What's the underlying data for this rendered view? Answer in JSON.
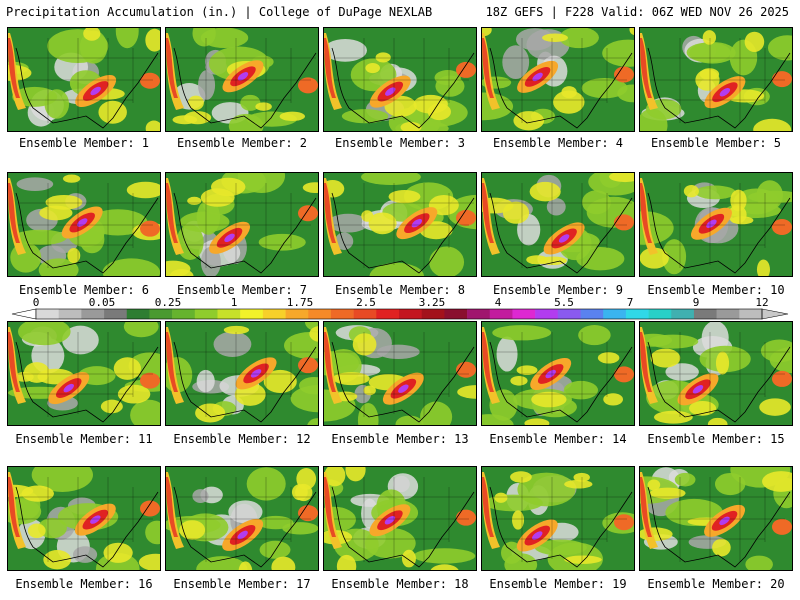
{
  "header": {
    "title": "Precipitation Accumulation (in.) | College of DuPage NEXLAB",
    "valid": "18Z GEFS | F228 Valid: 06Z WED NOV 26 2025"
  },
  "members": [
    "Ensemble Member: 1",
    "Ensemble Member: 2",
    "Ensemble Member: 3",
    "Ensemble Member: 4",
    "Ensemble Member: 5",
    "Ensemble Member: 6",
    "Ensemble Member: 7",
    "Ensemble Member: 8",
    "Ensemble Member: 9",
    "Ensemble Member: 10",
    "Ensemble Member: 11",
    "Ensemble Member: 12",
    "Ensemble Member: 13",
    "Ensemble Member: 14",
    "Ensemble Member: 15",
    "Ensemble Member: 16",
    "Ensemble Member: 17",
    "Ensemble Member: 18",
    "Ensemble Member: 19",
    "Ensemble Member: 20"
  ],
  "legend": {
    "labels": [
      "0",
      "0.05",
      "0.25",
      "1",
      "1.75",
      "2.5",
      "3.25",
      "4",
      "5.5",
      "7",
      "9",
      "12"
    ],
    "colors": [
      "#d9d9d9",
      "#bdbdbd",
      "#9a9a9a",
      "#7a7a7a",
      "#2e7d32",
      "#4a9a30",
      "#66b32e",
      "#8fcc2c",
      "#c7e02a",
      "#f2f22a",
      "#f7d02a",
      "#f7a82a",
      "#f58a28",
      "#ef6a26",
      "#e84a24",
      "#e02222",
      "#c4161f",
      "#a3121b",
      "#8a0f2f",
      "#a0166e",
      "#c21c9e",
      "#de28d2",
      "#b23cf0",
      "#8a5af0",
      "#5a82f0",
      "#3ab4f0",
      "#30d8e8",
      "#28d0c8",
      "#40b0b0",
      "#7a7a7a",
      "#9a9a9a",
      "#bdbdbd"
    ]
  }
}
